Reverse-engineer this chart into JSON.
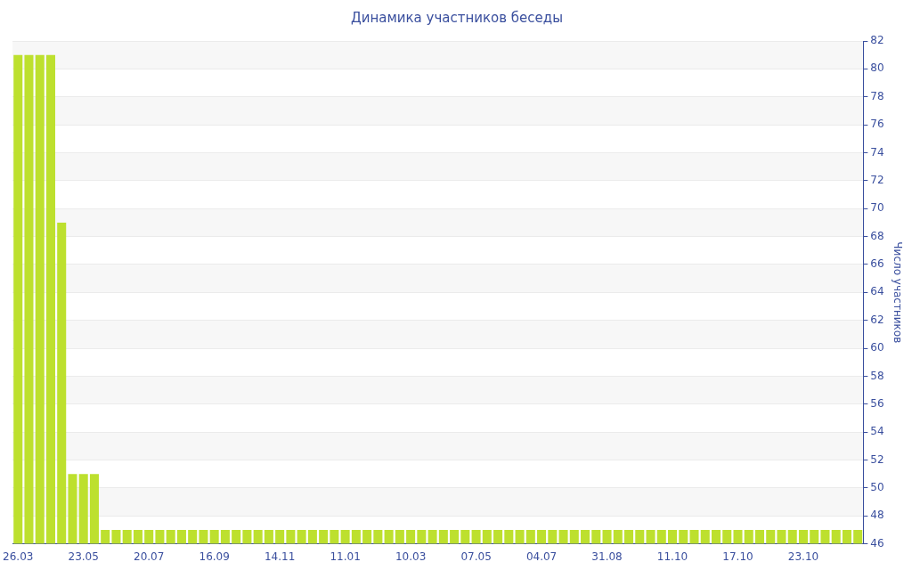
{
  "chart_data": {
    "type": "bar",
    "title": "Динамика участников беседы",
    "ylabel": "Число участников",
    "categories": [
      "26.03",
      null,
      null,
      null,
      null,
      null,
      "23.05",
      null,
      null,
      null,
      null,
      null,
      "20.07",
      null,
      null,
      null,
      null,
      null,
      "16.09",
      null,
      null,
      null,
      null,
      null,
      "14.11",
      null,
      null,
      null,
      null,
      null,
      "11.01",
      null,
      null,
      null,
      null,
      null,
      "10.03",
      null,
      null,
      null,
      null,
      null,
      "07.05",
      null,
      null,
      null,
      null,
      null,
      "04.07",
      null,
      null,
      null,
      null,
      null,
      "31.08",
      null,
      null,
      null,
      null,
      null,
      "11.10",
      null,
      null,
      null,
      null,
      null,
      "17.10",
      null,
      null,
      null,
      null,
      null,
      "23.10",
      null,
      null,
      null,
      null,
      null
    ],
    "values": [
      81,
      81,
      81,
      81,
      69,
      51,
      51,
      51,
      47,
      47,
      47,
      47,
      47,
      47,
      47,
      47,
      47,
      47,
      47,
      47,
      47,
      47,
      47,
      47,
      47,
      47,
      47,
      47,
      47,
      47,
      47,
      47,
      47,
      47,
      47,
      47,
      47,
      47,
      47,
      47,
      47,
      47,
      47,
      47,
      47,
      47,
      47,
      47,
      47,
      47,
      47,
      47,
      47,
      47,
      47,
      47,
      47,
      47,
      47,
      47,
      47,
      47,
      47,
      47,
      47,
      47,
      47,
      47,
      47,
      47,
      47,
      47,
      47,
      47,
      47,
      47,
      47,
      47
    ],
    "color": "#bde02e",
    "ylim": [
      46,
      82
    ],
    "yticks": [
      46,
      48,
      50,
      52,
      54,
      56,
      58,
      60,
      62,
      64,
      66,
      68,
      70,
      72,
      74,
      76,
      78,
      80,
      82
    ],
    "grid": "y",
    "legend": false
  }
}
